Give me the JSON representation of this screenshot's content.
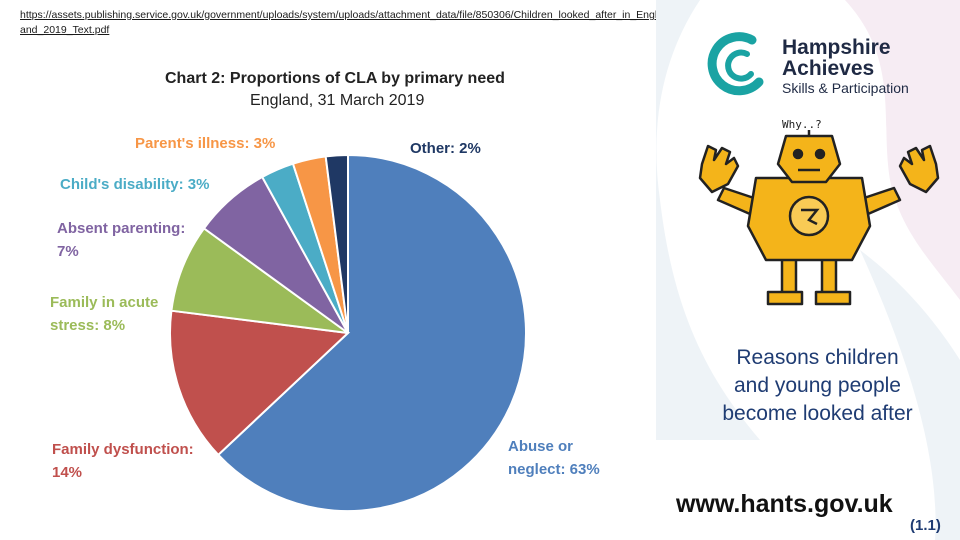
{
  "source_link": "https://assets.publishing.service.gov.uk/government/uploads/system/uploads/attachment_data/file/850306/Children_looked_after_in_England_2019_Text.pdf",
  "chart_data": {
    "type": "pie",
    "title": "Chart 2: Proportions of CLA by primary need",
    "subtitle": "England, 31 March 2019",
    "slices": [
      {
        "label_line1": "Abuse or",
        "label_line2": "neglect: 63%",
        "value": 63,
        "color": "#4f7fbc"
      },
      {
        "label_line1": "Family dysfunction:",
        "label_line2": "14%",
        "value": 14,
        "color": "#c0504d"
      },
      {
        "label_line1": "Family in acute",
        "label_line2": "stress: 8%",
        "value": 8,
        "color": "#9bbb59"
      },
      {
        "label_line1": "Absent parenting:",
        "label_line2": "7%",
        "value": 7,
        "color": "#8064a2"
      },
      {
        "label_line1": "Child's disability: 3%",
        "label_line2": "",
        "value": 3,
        "color": "#4bacc6"
      },
      {
        "label_line1": "Parent's illness: 3%",
        "label_line2": "",
        "value": 3,
        "color": "#f79646"
      },
      {
        "label_line1": "Other: 2%",
        "label_line2": "",
        "value": 2,
        "color": "#1f3864"
      }
    ]
  },
  "branding": {
    "name_line1": "Hampshire",
    "name_line2": "Achieves",
    "sub": "Skills & Participation",
    "speech": "Why..?",
    "site": "www.hants.gov.uk",
    "accent": "#1aa3a3"
  },
  "caption": {
    "line1": "Reasons children",
    "line2": "and young people",
    "line3": "become looked after"
  },
  "reference": "(1.1)"
}
